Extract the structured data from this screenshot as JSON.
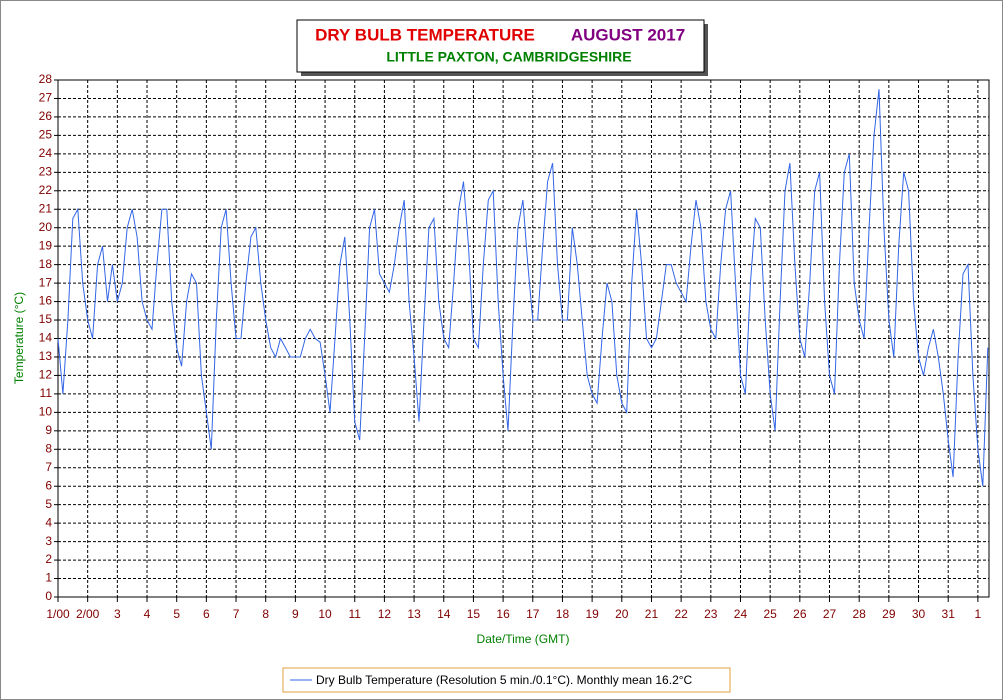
{
  "chart_data": {
    "type": "line",
    "title": "DRY BULB TEMPERATURE",
    "title_period": "AUGUST 2017",
    "subtitle": "LITTLE PAXTON, CAMBRIDGESHIRE",
    "x_label": "Date/Time (GMT)",
    "y_label": "Temperature (°C)",
    "x": [
      0,
      4,
      8,
      12,
      16,
      20,
      24,
      28,
      32,
      36,
      40,
      44,
      48,
      52,
      56,
      60,
      64,
      68,
      72,
      76,
      80,
      84,
      88,
      92,
      96,
      100,
      104,
      108,
      112,
      116,
      120,
      124,
      128,
      132,
      136,
      140,
      144,
      148,
      152,
      156,
      160,
      164,
      168,
      172,
      176,
      180,
      184,
      188,
      192,
      196,
      200,
      204,
      208,
      212,
      216,
      220,
      224,
      228,
      232,
      236,
      240,
      244,
      248,
      252,
      256,
      260,
      264,
      268,
      272,
      276,
      280,
      284,
      288,
      292,
      296,
      300,
      304,
      308,
      312,
      316,
      320,
      324,
      328,
      332,
      336,
      340,
      344,
      348,
      352,
      356,
      360,
      364,
      368,
      372,
      376,
      380,
      384,
      388,
      392,
      396,
      400,
      404,
      408,
      412,
      416,
      420,
      424,
      428,
      432,
      436,
      440,
      444,
      448,
      452,
      456,
      460,
      464,
      468,
      472,
      476,
      480,
      484,
      488,
      492,
      496,
      500,
      504,
      508,
      512,
      516,
      520,
      524,
      528,
      532,
      536,
      540,
      544,
      548,
      552,
      556,
      560,
      564,
      568,
      572,
      576,
      580,
      584,
      588,
      592,
      596,
      600,
      604,
      608,
      612,
      616,
      620,
      624,
      628,
      632,
      636,
      640,
      644,
      648,
      652,
      656,
      660,
      664,
      668,
      672,
      676,
      680,
      684,
      688,
      692,
      696,
      700,
      704,
      708,
      712,
      716,
      720,
      724,
      728,
      732,
      736,
      740,
      744,
      748,
      752
    ],
    "series": [
      {
        "name": "Dry Bulb Temperature (Resolution 5 min./0.1°C). Monthly mean 16.2°C",
        "color": "#3366e6",
        "values": [
          14,
          11,
          15,
          20.5,
          21,
          17,
          15,
          14,
          18,
          19,
          16,
          18,
          16,
          17,
          20,
          21,
          19.5,
          16,
          15,
          14.5,
          18,
          21,
          21,
          16,
          13.5,
          12.5,
          16,
          17.5,
          17,
          12,
          10,
          8,
          15,
          20,
          21,
          17,
          14,
          14,
          17,
          19.5,
          20,
          17,
          15,
          13.5,
          13,
          14,
          13.5,
          13,
          13,
          13,
          14,
          14.5,
          14,
          13.8,
          12,
          10,
          14,
          18,
          19.5,
          15,
          9.5,
          8.5,
          14,
          20,
          21,
          17.5,
          17,
          16.5,
          18,
          20,
          21.5,
          16,
          13,
          9.5,
          15,
          20,
          20.5,
          16,
          14,
          13.5,
          17,
          21,
          22.5,
          19,
          14,
          13.5,
          18,
          21.5,
          22,
          16,
          12,
          9,
          15,
          20,
          21.5,
          18,
          15,
          15,
          19,
          22.5,
          23.5,
          18,
          15,
          15,
          20,
          18,
          15,
          12,
          11,
          10.5,
          14,
          17,
          16,
          12,
          10.5,
          10,
          17,
          21,
          18,
          14,
          13.5,
          14,
          16,
          18,
          18,
          17,
          16.5,
          16,
          19,
          21.5,
          20,
          16,
          14.5,
          14,
          18,
          21,
          22,
          17,
          12,
          11,
          17,
          20.5,
          20,
          15,
          11,
          9,
          16,
          22,
          23.5,
          18,
          14,
          13,
          17,
          22,
          23,
          16,
          12,
          11,
          18,
          23,
          24,
          17,
          15,
          14,
          20,
          25,
          27.5,
          20,
          15,
          13,
          19,
          23,
          22,
          16,
          13,
          12,
          13.5,
          14.5,
          13,
          11,
          8.5,
          6.5,
          13,
          17.5,
          18,
          12,
          8,
          6,
          13.5
        ]
      }
    ],
    "xlim": [
      0,
      753
    ],
    "xticks": [
      {
        "value": 0,
        "label": "1/00"
      },
      {
        "value": 24,
        "label": "2/00"
      },
      {
        "value": 48,
        "label": "3"
      },
      {
        "value": 72,
        "label": "4"
      },
      {
        "value": 96,
        "label": "5"
      },
      {
        "value": 120,
        "label": "6"
      },
      {
        "value": 144,
        "label": "7"
      },
      {
        "value": 168,
        "label": "8"
      },
      {
        "value": 192,
        "label": "9"
      },
      {
        "value": 216,
        "label": "10"
      },
      {
        "value": 240,
        "label": "11"
      },
      {
        "value": 264,
        "label": "12"
      },
      {
        "value": 288,
        "label": "13"
      },
      {
        "value": 312,
        "label": "14"
      },
      {
        "value": 336,
        "label": "15"
      },
      {
        "value": 360,
        "label": "16"
      },
      {
        "value": 384,
        "label": "17"
      },
      {
        "value": 408,
        "label": "18"
      },
      {
        "value": 432,
        "label": "19"
      },
      {
        "value": 456,
        "label": "20"
      },
      {
        "value": 480,
        "label": "21"
      },
      {
        "value": 504,
        "label": "22"
      },
      {
        "value": 528,
        "label": "23"
      },
      {
        "value": 552,
        "label": "24"
      },
      {
        "value": 576,
        "label": "25"
      },
      {
        "value": 600,
        "label": "26"
      },
      {
        "value": 624,
        "label": "27"
      },
      {
        "value": 648,
        "label": "28"
      },
      {
        "value": 672,
        "label": "29"
      },
      {
        "value": 696,
        "label": "30"
      },
      {
        "value": 720,
        "label": "31"
      },
      {
        "value": 744,
        "label": "1"
      }
    ],
    "ylim": [
      0,
      28
    ],
    "yticks": [
      0,
      1,
      2,
      3,
      4,
      5,
      6,
      7,
      8,
      9,
      10,
      11,
      12,
      13,
      14,
      15,
      16,
      17,
      18,
      19,
      20,
      21,
      22,
      23,
      24,
      25,
      26,
      27,
      28
    ],
    "grid": true
  }
}
